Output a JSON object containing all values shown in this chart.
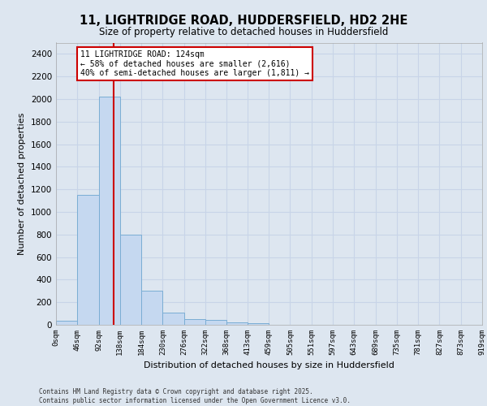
{
  "title_line1": "11, LIGHTRIDGE ROAD, HUDDERSFIELD, HD2 2HE",
  "title_line2": "Size of property relative to detached houses in Huddersfield",
  "xlabel": "Distribution of detached houses by size in Huddersfield",
  "ylabel": "Number of detached properties",
  "footer_line1": "Contains HM Land Registry data © Crown copyright and database right 2025.",
  "footer_line2": "Contains public sector information licensed under the Open Government Licence v3.0.",
  "bin_labels": [
    "0sqm",
    "46sqm",
    "92sqm",
    "138sqm",
    "184sqm",
    "230sqm",
    "276sqm",
    "322sqm",
    "368sqm",
    "413sqm",
    "459sqm",
    "505sqm",
    "551sqm",
    "597sqm",
    "643sqm",
    "689sqm",
    "735sqm",
    "781sqm",
    "827sqm",
    "873sqm",
    "919sqm"
  ],
  "bin_edges": [
    0,
    46,
    92,
    138,
    184,
    230,
    276,
    322,
    368,
    413,
    459,
    505,
    551,
    597,
    643,
    689,
    735,
    781,
    827,
    873,
    919
  ],
  "bar_values": [
    35,
    1150,
    2020,
    800,
    300,
    105,
    50,
    40,
    25,
    15,
    0,
    0,
    0,
    0,
    0,
    0,
    0,
    0,
    0,
    0
  ],
  "bar_color": "#c5d8f0",
  "bar_edge_color": "#7aadd4",
  "grid_color": "#c8d4e8",
  "background_color": "#dde6f0",
  "property_line_x": 124,
  "property_line_color": "#cc0000",
  "annotation_line1": "11 LIGHTRIDGE ROAD: 124sqm",
  "annotation_line2": "← 58% of detached houses are smaller (2,616)",
  "annotation_line3": "40% of semi-detached houses are larger (1,811) →",
  "annotation_box_color": "#cc0000",
  "ylim": [
    0,
    2500
  ],
  "yticks": [
    0,
    200,
    400,
    600,
    800,
    1000,
    1200,
    1400,
    1600,
    1800,
    2000,
    2200,
    2400
  ]
}
